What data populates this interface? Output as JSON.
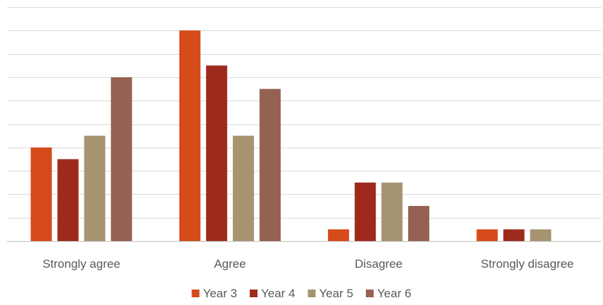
{
  "chart_data": {
    "type": "bar",
    "categories": [
      "Strongly agree",
      "Agree",
      "Disagree",
      "Strongly disagree"
    ],
    "series": [
      {
        "name": "Year 3",
        "color": "#d54b1a",
        "values": [
          8,
          18,
          1,
          1
        ]
      },
      {
        "name": "Year 4",
        "color": "#9e2a1e",
        "values": [
          7,
          15,
          5,
          1
        ]
      },
      {
        "name": "Year 5",
        "color": "#a69471",
        "values": [
          9,
          9,
          5,
          1
        ]
      },
      {
        "name": "Year 6",
        "color": "#956152",
        "values": [
          14,
          13,
          3,
          0
        ]
      }
    ],
    "title": "",
    "xlabel": "",
    "ylabel": "",
    "ylim": [
      0,
      20
    ],
    "grid": true,
    "legend": "bottom"
  }
}
